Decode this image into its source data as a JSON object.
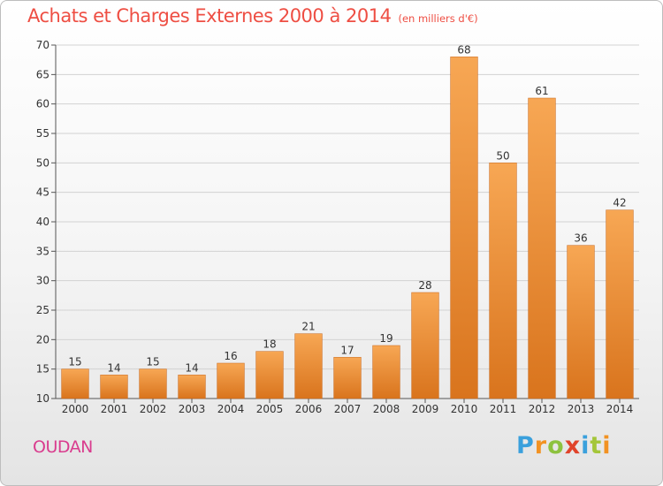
{
  "header": {
    "title": "Achats et Charges Externes 2000 à 2014",
    "unit": "(en milliers d'€)"
  },
  "footer": {
    "commune": "OUDAN",
    "brand": "Proxiti"
  },
  "colors": {
    "title": "#ee4e43",
    "commune": "#d93c8e",
    "bar_light": "#f7a754",
    "bar_dark": "#d9741d",
    "grid": "#d2d2d2",
    "axis_text": "#333333"
  },
  "chart_data": {
    "type": "bar",
    "title": "Achats et Charges Externes 2000 à 2014",
    "subtitle": "(en milliers d'€)",
    "xlabel": "",
    "ylabel": "",
    "categories": [
      "2000",
      "2001",
      "2002",
      "2003",
      "2004",
      "2005",
      "2006",
      "2007",
      "2008",
      "2009",
      "2010",
      "2011",
      "2012",
      "2013",
      "2014"
    ],
    "values": [
      15,
      14,
      15,
      14,
      16,
      18,
      21,
      17,
      19,
      28,
      68,
      50,
      61,
      36,
      42
    ],
    "data_labels": [
      "15",
      "14",
      "15",
      "14",
      "16",
      "18",
      "21",
      "17",
      "19",
      "28",
      "68",
      "50",
      "61",
      "36",
      "42"
    ],
    "ylim": [
      10,
      70
    ],
    "yticks": [
      10,
      15,
      20,
      25,
      30,
      35,
      40,
      45,
      50,
      55,
      60,
      65,
      70
    ],
    "grid": true,
    "legend": "none"
  }
}
